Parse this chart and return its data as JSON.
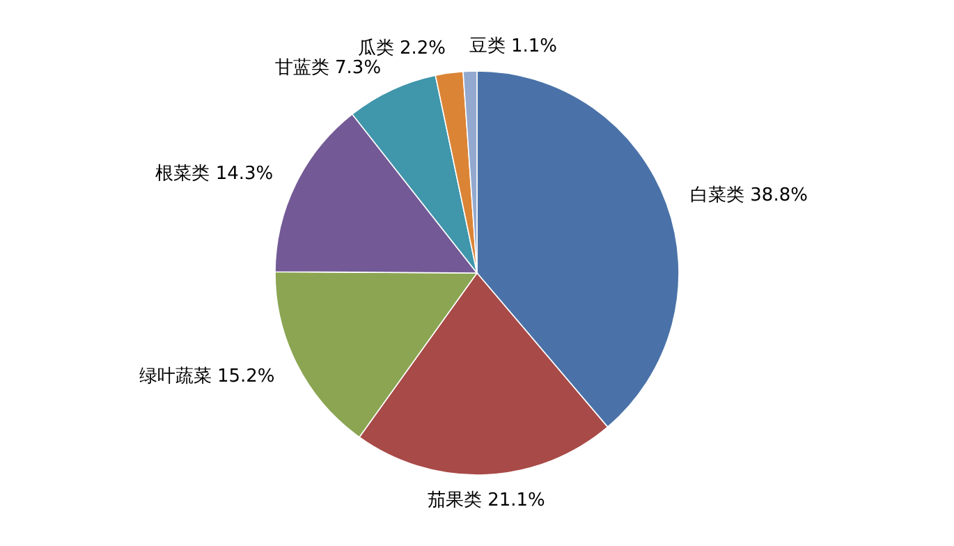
{
  "chart_data": {
    "type": "pie",
    "categories": [
      "白菜类",
      "茄果类",
      "绿叶蔬菜",
      "根菜类",
      "甘蓝类",
      "瓜类",
      "豆类"
    ],
    "values": [
      38.8,
      21.1,
      15.2,
      14.3,
      7.3,
      2.2,
      1.1
    ],
    "colors": [
      "#4a72a8",
      "#a84a47",
      "#8ba552",
      "#735a96",
      "#4096ab",
      "#db8436",
      "#93a9cf"
    ],
    "value_labels": [
      "38.8%",
      "21.1%",
      "15.2%",
      "14.3%",
      "7.3%",
      "2.2%",
      "1.1%"
    ]
  }
}
